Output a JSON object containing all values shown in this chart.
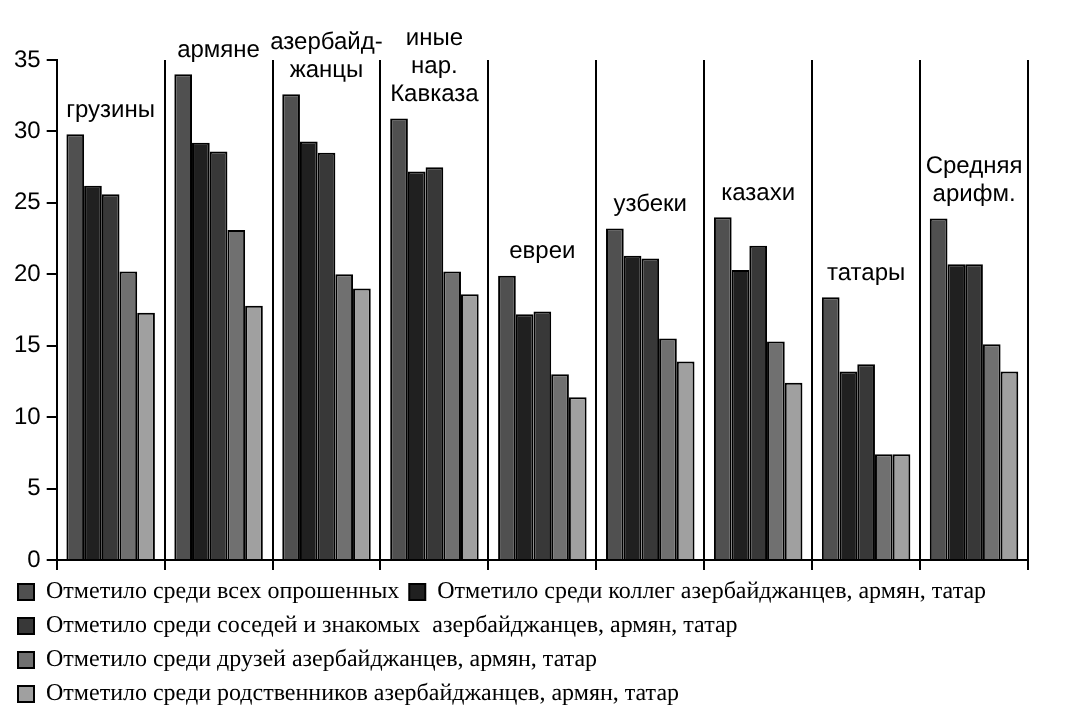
{
  "chart_data": {
    "type": "bar",
    "categories": [
      "грузины",
      "армяне",
      "азербайд-жанцы",
      "иные нар. Кавказа",
      "евреи",
      "узбеки",
      "казахи",
      "татары",
      "Средняя арифм."
    ],
    "series": [
      {
        "name": "Отметило среди всех опрошенных",
        "color": "#505050",
        "values": [
          29.8,
          34.0,
          32.6,
          30.9,
          19.9,
          23.2,
          24.0,
          18.4,
          23.9
        ]
      },
      {
        "name": "Отметило среди коллег азербайджанцев, армян, татар",
        "color": "#202020",
        "values": [
          26.2,
          29.2,
          29.3,
          27.2,
          17.2,
          21.3,
          20.3,
          13.2,
          20.7
        ]
      },
      {
        "name": "Отметило среди соседей и знакомых  азербайджанцев, армян, татар",
        "color": "#383838",
        "values": [
          25.6,
          28.6,
          28.5,
          27.5,
          17.4,
          21.1,
          22.0,
          13.7,
          20.7
        ]
      },
      {
        "name": "Отметило среди друзей азербайджанцев, армян, татар",
        "color": "#707070",
        "values": [
          20.2,
          23.1,
          20.0,
          20.2,
          13.0,
          15.5,
          15.3,
          7.4,
          15.1
        ]
      },
      {
        "name": "Отметило среди родственников азербайджанцев, армян, татар",
        "color": "#a0a0a0",
        "values": [
          17.3,
          17.8,
          19.0,
          18.6,
          11.4,
          13.9,
          12.4,
          7.4,
          13.2
        ]
      }
    ],
    "ylim": [
      0,
      35
    ],
    "yticks": [
      0,
      5,
      10,
      15,
      20,
      25,
      30,
      35
    ],
    "grid": "x",
    "legend": "bottom",
    "tick_labels": "y"
  }
}
